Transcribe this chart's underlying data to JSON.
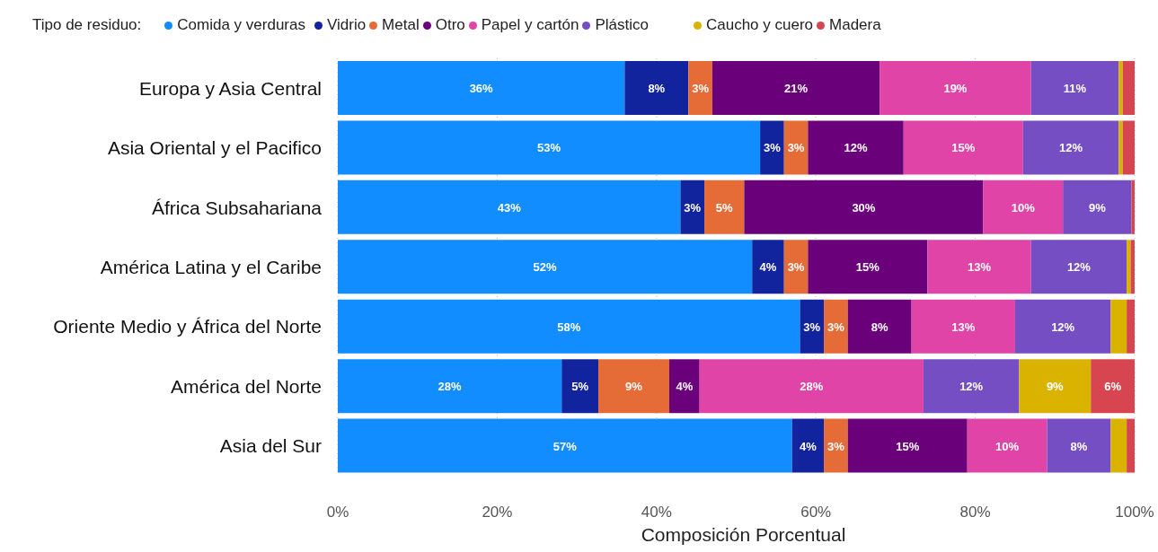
{
  "chart_data": {
    "type": "bar",
    "orientation": "horizontal",
    "stacked": true,
    "xlabel": "Composición Porcentual",
    "legend_title": "Tipo de residuo:",
    "legend": "top left",
    "grid": "x",
    "categories": [
      "Europa y Asia Central",
      "Asia Oriental y el Pacifico",
      "África Subsahariana",
      "América Latina y el Caribe",
      "Oriente Medio y África del Norte",
      "América del Norte",
      "Asia del Sur"
    ],
    "xlim": [
      0,
      100
    ],
    "xticks": [
      {
        "value": 0,
        "label": "0%"
      },
      {
        "value": 20,
        "label": "20%"
      },
      {
        "value": 40,
        "label": "40%"
      },
      {
        "value": 60,
        "label": "60%"
      },
      {
        "value": 80,
        "label": "80%"
      },
      {
        "value": 100,
        "label": "100%"
      }
    ],
    "series": [
      {
        "name": "Comida y verduras",
        "color": "#118dff",
        "values": [
          36,
          53,
          43,
          52,
          58,
          28.1,
          57
        ],
        "value_labels": [
          "36%",
          "53%",
          "43%",
          "52%",
          "58%",
          "28%",
          "57%"
        ]
      },
      {
        "name": "Vidrio",
        "color": "#12239e",
        "values": [
          8,
          3,
          3,
          4,
          3,
          4.6,
          4
        ],
        "value_labels": [
          "8%",
          "3%",
          "3%",
          "4%",
          "3%",
          "5%",
          "4%"
        ]
      },
      {
        "name": "Metal",
        "color": "#e66c37",
        "values": [
          3,
          3,
          5,
          3,
          3,
          8.9,
          3
        ],
        "value_labels": [
          "3%",
          "3%",
          "5%",
          "3%",
          "3%",
          "9%",
          "3%"
        ]
      },
      {
        "name": "Otro",
        "color": "#6b007b",
        "values": [
          21,
          12,
          30,
          15,
          8,
          3.8,
          15
        ],
        "value_labels": [
          "21%",
          "12%",
          "30%",
          "15%",
          "8%",
          "4%",
          "15%"
        ]
      },
      {
        "name": "Papel y cartón",
        "color": "#e044a7",
        "values": [
          19,
          15,
          10,
          13,
          13,
          28.1,
          10
        ],
        "value_labels": [
          "19%",
          "15%",
          "10%",
          "13%",
          "13%",
          "28%",
          "10%"
        ]
      },
      {
        "name": "Plástico",
        "color": "#744ec2",
        "values": [
          11,
          12,
          8.6,
          12,
          12,
          12,
          8
        ],
        "value_labels": [
          "11%",
          "12%",
          "9%",
          "12%",
          "12%",
          "12%",
          "8%"
        ]
      },
      {
        "name": "Caucho y cuero",
        "color": "#d9b300",
        "values": [
          0.5,
          0.5,
          0,
          0.5,
          2,
          9,
          2
        ],
        "value_labels": [
          null,
          null,
          null,
          null,
          null,
          "9%",
          null
        ]
      },
      {
        "name": "Madera",
        "color": "#d64550",
        "values": [
          1.5,
          1.5,
          0.4,
          0.5,
          1,
          5.5,
          1
        ],
        "value_labels": [
          null,
          null,
          null,
          null,
          null,
          "6%",
          null
        ]
      }
    ]
  }
}
